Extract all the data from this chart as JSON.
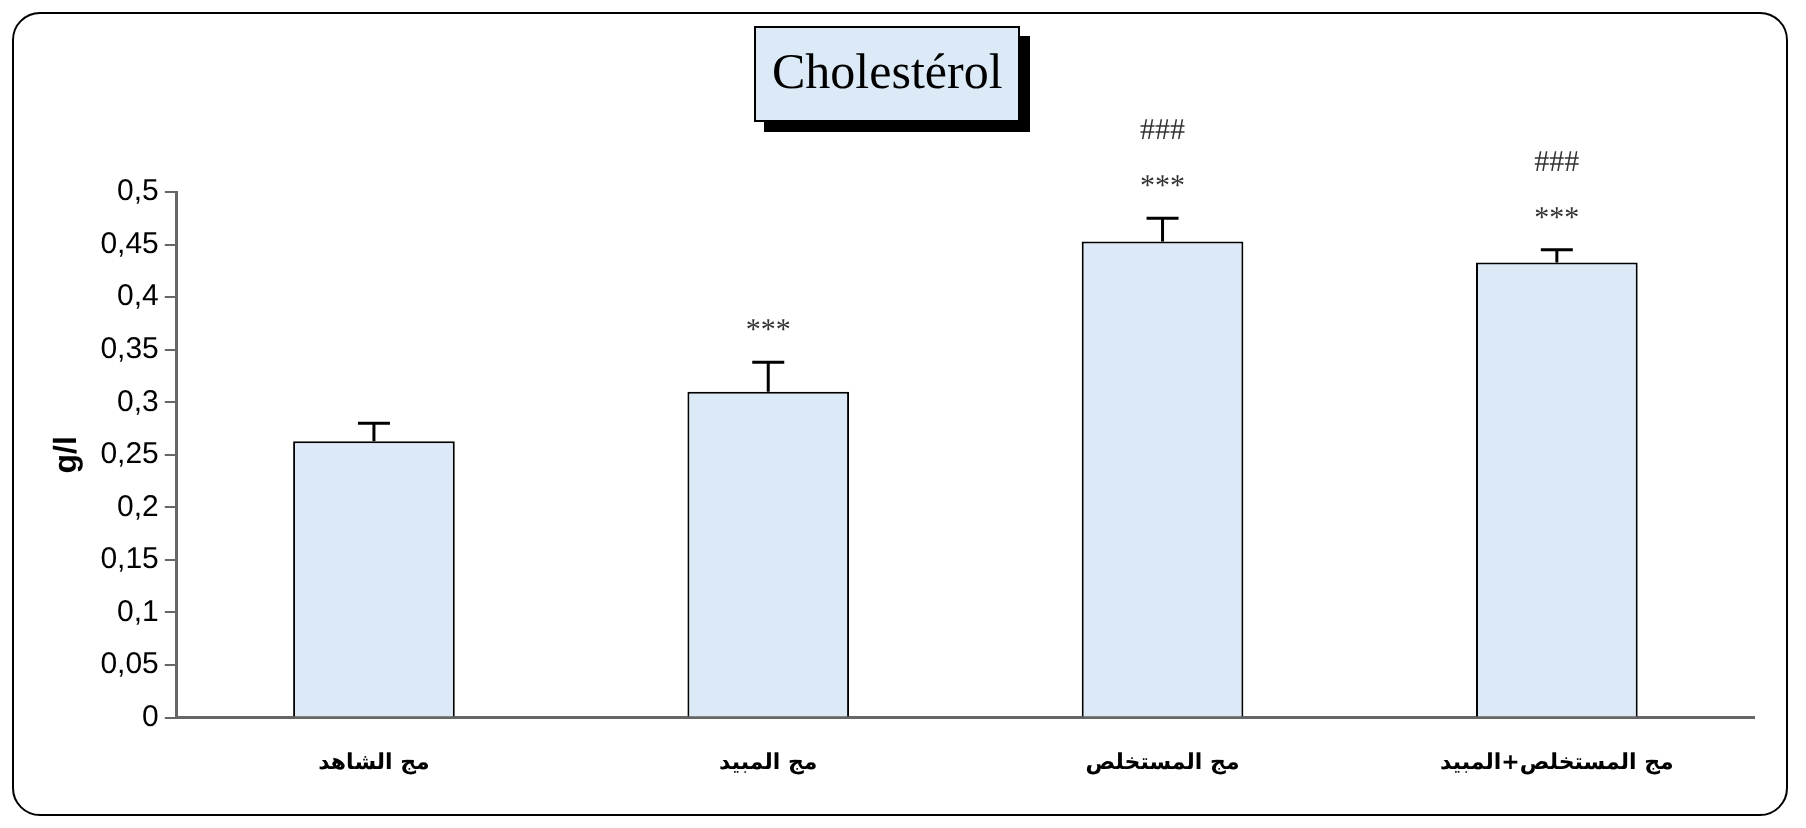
{
  "chart_data": {
    "type": "bar",
    "title": "Cholestérol",
    "ylabel": "g/l",
    "categories": [
      "مج الشاهد",
      "مج المبيد",
      "مج المستخلص",
      "مج المستخلص+المبيد"
    ],
    "values": [
      0.263,
      0.31,
      0.453,
      0.433
    ],
    "errors": [
      [
        0.263,
        0.28
      ],
      [
        0.31,
        0.338
      ],
      [
        0.453,
        0.475
      ],
      [
        0.433,
        0.445
      ]
    ],
    "color": "#dce9f7",
    "ylim": [
      0,
      0.5
    ],
    "yticks": [
      0,
      {
        "value": 0.05,
        "label": "0,05"
      },
      {
        "value": 0.1,
        "label": "0,1"
      },
      {
        "value": 0.15,
        "label": "0,15"
      },
      {
        "value": 0.2,
        "label": "0,2"
      },
      {
        "value": 0.25,
        "label": "0,25"
      },
      {
        "value": 0.3,
        "label": "0,3"
      },
      {
        "value": 0.35,
        "label": "0,35"
      },
      {
        "value": 0.4,
        "label": "0,4"
      },
      {
        "value": 0.45,
        "label": "0,45"
      },
      {
        "value": 0.5,
        "label": "0,5"
      }
    ],
    "annotations": [
      {
        "text": "***",
        "x": "مج المبيد",
        "y": 0.338
      },
      {
        "text": "***",
        "x": "مج المستخلص",
        "y": 0.475
      },
      {
        "text": "###",
        "x": "مج المستخلص",
        "y": 0.475
      },
      {
        "text": "***",
        "x": "مج المستخلص+المبيد",
        "y": 0.445
      },
      {
        "text": "###",
        "x": "مج المستخلص+المبيد",
        "y": 0.445
      }
    ],
    "grid": false,
    "legend": false
  }
}
